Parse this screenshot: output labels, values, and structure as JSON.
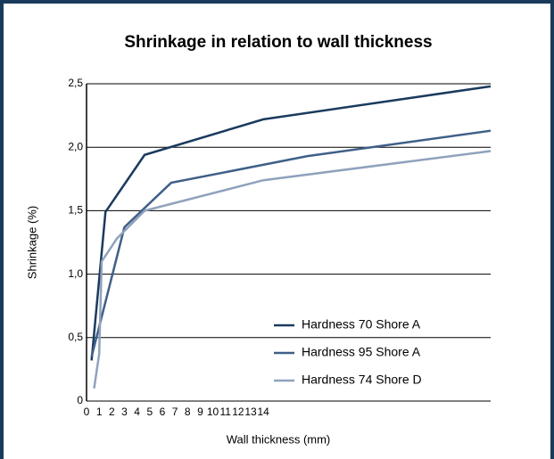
{
  "chart_data": {
    "type": "line",
    "title": "Shrinkage in relation to wall thickness",
    "xlabel": "Wall thickness (mm)",
    "ylabel": "Shrinkage (%)",
    "xlim": [
      0,
      32
    ],
    "xticks": [
      0,
      1,
      2,
      3,
      4,
      5,
      6,
      7,
      8,
      9,
      10,
      11,
      12,
      13,
      14
    ],
    "ylim": [
      0,
      2.5
    ],
    "yticks": [
      0,
      {
        "value": 0.5,
        "label": "0,5"
      },
      {
        "value": 1.0,
        "label": "1,0"
      },
      {
        "value": 1.5,
        "label": "1,5"
      },
      {
        "value": 2.0,
        "label": "2,0"
      },
      {
        "value": 2.5,
        "label": "2,5"
      }
    ],
    "grid": true,
    "legend": "lower right",
    "series": [
      {
        "name": "Hardness 70 Shore A",
        "color": "#1b3a5e",
        "x": [
          0.4,
          1.5,
          4.6,
          14,
          32
        ],
        "values": [
          0.32,
          1.49,
          1.94,
          2.22,
          2.48
        ]
      },
      {
        "name": "Hardness 95 Shore A",
        "color": "#3f5f88",
        "x": [
          0.4,
          3,
          6.7,
          17.5,
          32
        ],
        "values": [
          0.35,
          1.37,
          1.72,
          1.93,
          2.13
        ]
      },
      {
        "name": "Hardness 74 Shore D",
        "color": "#8fa2bd",
        "x": [
          0.6,
          1,
          1.2,
          2.4,
          4.6,
          14,
          32
        ],
        "values": [
          0.1,
          0.37,
          1.1,
          1.28,
          1.5,
          1.74,
          1.97
        ]
      }
    ]
  }
}
